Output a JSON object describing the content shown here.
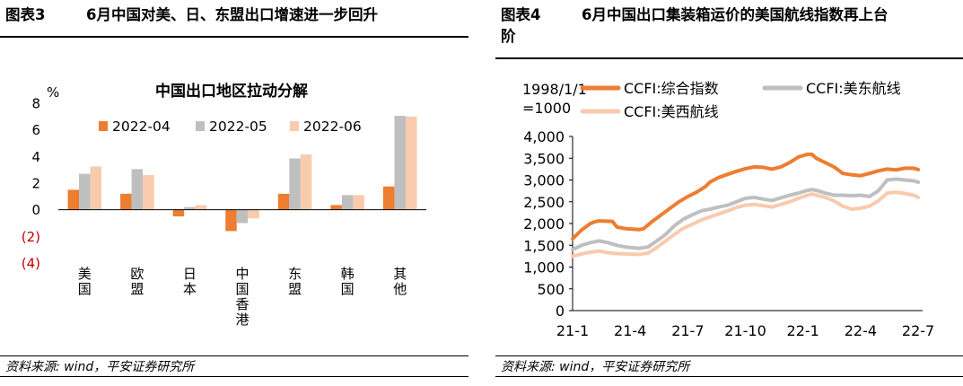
{
  "colors": {
    "s1": "#ED7D31",
    "s2": "#BFBFBF",
    "s3": "#F8CBAD",
    "neg": "#C00000"
  },
  "left": {
    "header_num": "图表3",
    "header_title": "6月中国对美、日、东盟出口增速进一步回升",
    "source": "资料来源: wind，平安证券研究所",
    "chart_data": {
      "type": "bar",
      "title": "中国出口地区拉动分解",
      "unit": "%",
      "categories": [
        "美国",
        "欧盟",
        "日本",
        "中国香港",
        "东盟",
        "韩国",
        "其他"
      ],
      "series": [
        {
          "name": "2022-04",
          "values": [
            1.5,
            1.2,
            -0.5,
            -1.6,
            1.2,
            0.35,
            1.75
          ]
        },
        {
          "name": "2022-05",
          "values": [
            2.7,
            3.05,
            0.2,
            -1.0,
            3.85,
            1.1,
            7.05
          ]
        },
        {
          "name": "2022-06",
          "values": [
            3.25,
            2.6,
            0.35,
            -0.65,
            4.15,
            1.1,
            7.0
          ]
        }
      ],
      "yticks": [
        8,
        6,
        4,
        2,
        0,
        -2,
        -4
      ],
      "ytick_labels": [
        "8",
        "6",
        "4",
        "2",
        "0",
        "(2)",
        "(4)"
      ],
      "ylim": [
        -4,
        8
      ],
      "legend": "top"
    }
  },
  "right": {
    "header_num": "图表4",
    "header_title_line1": "6月中国出口集装箱运价的美国航线指数再上台",
    "header_title_line2": "阶",
    "source": "资料来源: wind，平安证券研究所",
    "chart_data": {
      "type": "line",
      "note_line1": "1998/1/1",
      "note_line2": "=1000",
      "xticks": [
        "21-1",
        "21-4",
        "21-7",
        "21-10",
        "22-1",
        "22-4",
        "22-7"
      ],
      "yticks": [
        4000,
        3500,
        3000,
        2500,
        2000,
        1500,
        1000,
        500,
        0
      ],
      "ytick_labels": [
        "4,000",
        "3,500",
        "3,000",
        "2,500",
        "2,000",
        "1,500",
        "1,000",
        "500",
        "0"
      ],
      "ylim": [
        0,
        4000
      ],
      "x_range": [
        0,
        79
      ],
      "series": [
        {
          "name": "CCFI:综合指数",
          "points": [
            [
              0,
              1650
            ],
            [
              2,
              1850
            ],
            [
              4,
              2000
            ],
            [
              5,
              2040
            ],
            [
              6,
              2060
            ],
            [
              9,
              2050
            ],
            [
              10,
              1920
            ],
            [
              12,
              1880
            ],
            [
              15,
              1860
            ],
            [
              16,
              1880
            ],
            [
              18,
              2050
            ],
            [
              20,
              2200
            ],
            [
              22,
              2350
            ],
            [
              24,
              2500
            ],
            [
              26,
              2620
            ],
            [
              28,
              2720
            ],
            [
              30,
              2850
            ],
            [
              31,
              2950
            ],
            [
              33,
              3060
            ],
            [
              35,
              3130
            ],
            [
              37,
              3200
            ],
            [
              39,
              3260
            ],
            [
              41,
              3300
            ],
            [
              43,
              3290
            ],
            [
              45,
              3250
            ],
            [
              47,
              3300
            ],
            [
              49,
              3400
            ],
            [
              51,
              3530
            ],
            [
              53,
              3590
            ],
            [
              54,
              3590
            ],
            [
              55,
              3500
            ],
            [
              57,
              3400
            ],
            [
              59,
              3300
            ],
            [
              61,
              3150
            ],
            [
              63,
              3120
            ],
            [
              65,
              3100
            ],
            [
              67,
              3150
            ],
            [
              69,
              3210
            ],
            [
              71,
              3250
            ],
            [
              73,
              3230
            ],
            [
              75,
              3270
            ],
            [
              77,
              3270
            ],
            [
              78,
              3240
            ]
          ]
        },
        {
          "name": "CCFI:美东航线",
          "points": [
            [
              0,
              1400
            ],
            [
              2,
              1500
            ],
            [
              4,
              1560
            ],
            [
              6,
              1600
            ],
            [
              8,
              1560
            ],
            [
              10,
              1500
            ],
            [
              12,
              1460
            ],
            [
              15,
              1430
            ],
            [
              17,
              1460
            ],
            [
              19,
              1600
            ],
            [
              21,
              1750
            ],
            [
              23,
              1950
            ],
            [
              25,
              2100
            ],
            [
              27,
              2200
            ],
            [
              29,
              2290
            ],
            [
              31,
              2330
            ],
            [
              33,
              2380
            ],
            [
              35,
              2420
            ],
            [
              37,
              2500
            ],
            [
              39,
              2580
            ],
            [
              41,
              2600
            ],
            [
              43,
              2560
            ],
            [
              45,
              2530
            ],
            [
              47,
              2590
            ],
            [
              49,
              2650
            ],
            [
              51,
              2700
            ],
            [
              53,
              2760
            ],
            [
              54,
              2780
            ],
            [
              55,
              2760
            ],
            [
              57,
              2700
            ],
            [
              59,
              2650
            ],
            [
              61,
              2650
            ],
            [
              63,
              2640
            ],
            [
              65,
              2650
            ],
            [
              67,
              2620
            ],
            [
              69,
              2750
            ],
            [
              71,
              3000
            ],
            [
              73,
              3020
            ],
            [
              75,
              3000
            ],
            [
              77,
              2980
            ],
            [
              78,
              2950
            ]
          ]
        },
        {
          "name": "CCFI:美西航线",
          "points": [
            [
              0,
              1250
            ],
            [
              2,
              1300
            ],
            [
              4,
              1340
            ],
            [
              6,
              1370
            ],
            [
              8,
              1330
            ],
            [
              10,
              1310
            ],
            [
              12,
              1300
            ],
            [
              15,
              1290
            ],
            [
              17,
              1320
            ],
            [
              19,
              1450
            ],
            [
              21,
              1600
            ],
            [
              23,
              1750
            ],
            [
              25,
              1890
            ],
            [
              27,
              1980
            ],
            [
              29,
              2080
            ],
            [
              31,
              2150
            ],
            [
              33,
              2220
            ],
            [
              35,
              2290
            ],
            [
              37,
              2370
            ],
            [
              39,
              2420
            ],
            [
              41,
              2440
            ],
            [
              43,
              2410
            ],
            [
              45,
              2380
            ],
            [
              47,
              2440
            ],
            [
              49,
              2500
            ],
            [
              51,
              2580
            ],
            [
              53,
              2650
            ],
            [
              54,
              2680
            ],
            [
              55,
              2650
            ],
            [
              57,
              2600
            ],
            [
              59,
              2520
            ],
            [
              61,
              2400
            ],
            [
              63,
              2330
            ],
            [
              65,
              2350
            ],
            [
              67,
              2400
            ],
            [
              69,
              2520
            ],
            [
              71,
              2700
            ],
            [
              73,
              2720
            ],
            [
              75,
              2690
            ],
            [
              77,
              2650
            ],
            [
              78,
              2600
            ]
          ]
        }
      ],
      "legend": "top"
    }
  }
}
